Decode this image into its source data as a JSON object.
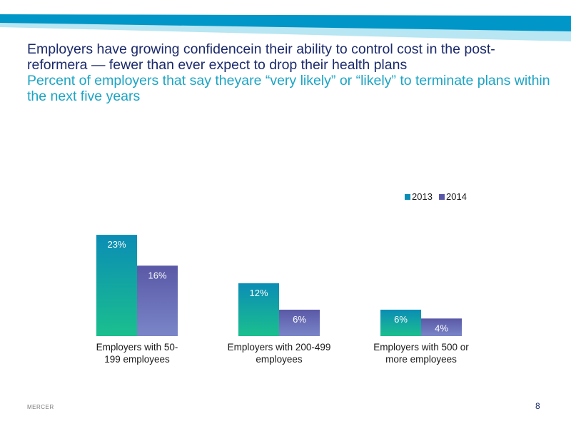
{
  "slide": {
    "title": "Employers have growing confidencein their ability to control cost in the post-reformera — fewer than ever expect to drop their health plans",
    "subtitle": "Percent of employers that say theyare “very likely” or “likely” to terminate plans within the next five years",
    "brand": "MERCER",
    "page_number": "8"
  },
  "colors": {
    "title": "#1b2a6b",
    "subtitle": "#1ba4c4",
    "banner_dark": "#0096c7",
    "banner_light": "#b8e6f2",
    "series_2013_top": "#0b8db5",
    "series_2013_bottom": "#1bbf8e",
    "series_2014_top": "#5a58a6",
    "series_2014_bottom": "#7a86c8"
  },
  "chart_data": {
    "type": "bar",
    "categories": [
      [
        "Employers with 50-",
        "199 employees"
      ],
      [
        "Employers with 200-499",
        "employees"
      ],
      [
        "Employers with 500 or",
        "more employees"
      ]
    ],
    "series": [
      {
        "name": "2013",
        "values": [
          23,
          12,
          6
        ],
        "labels": [
          "23%",
          "12%",
          "6%"
        ]
      },
      {
        "name": "2014",
        "values": [
          16,
          6,
          4
        ],
        "labels": [
          "16%",
          "6%",
          "4%"
        ]
      }
    ],
    "value_unit": "%",
    "legend_position": "top-right",
    "grid": false
  }
}
